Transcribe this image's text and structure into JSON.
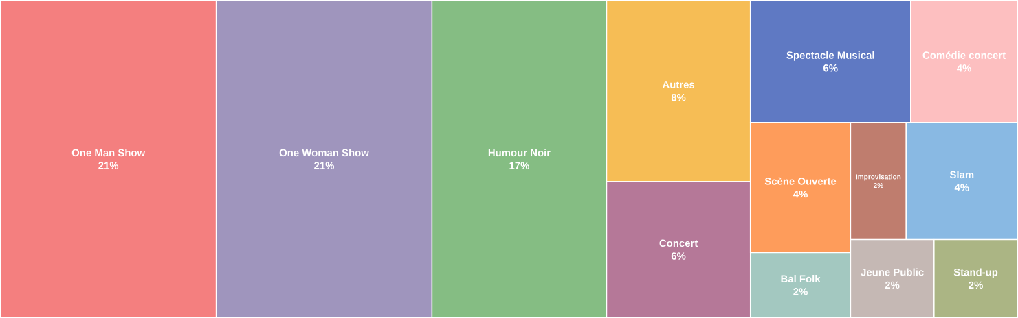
{
  "chart_data": {
    "type": "other",
    "categories": [
      "One Man Show",
      "One Woman Show",
      "Humour Noir",
      "Autres",
      "Concert",
      "Spectacle Musical",
      "Comédie concert",
      "Scène Ouverte",
      "Bal Folk",
      "Improvisation",
      "Slam",
      "Jeune Public",
      "Stand-up"
    ],
    "values": [
      21,
      21,
      17,
      8,
      6,
      6,
      4,
      4,
      2,
      2,
      4,
      2,
      2
    ],
    "value_labels": [
      "21%",
      "21%",
      "17%",
      "8%",
      "6%",
      "6%",
      "4%",
      "4%",
      "2%",
      "2%",
      "4%",
      "2%",
      "2%"
    ],
    "colors": [
      "#f47f7f",
      "#9f95bd",
      "#85bd83",
      "#f6bd55",
      "#b57898",
      "#5f79c3",
      "#fdbfc0",
      "#fe9c5b",
      "#a3c8c0",
      "#bf7d6e",
      "#89b9e3",
      "#c5b8b4",
      "#abb584"
    ]
  }
}
